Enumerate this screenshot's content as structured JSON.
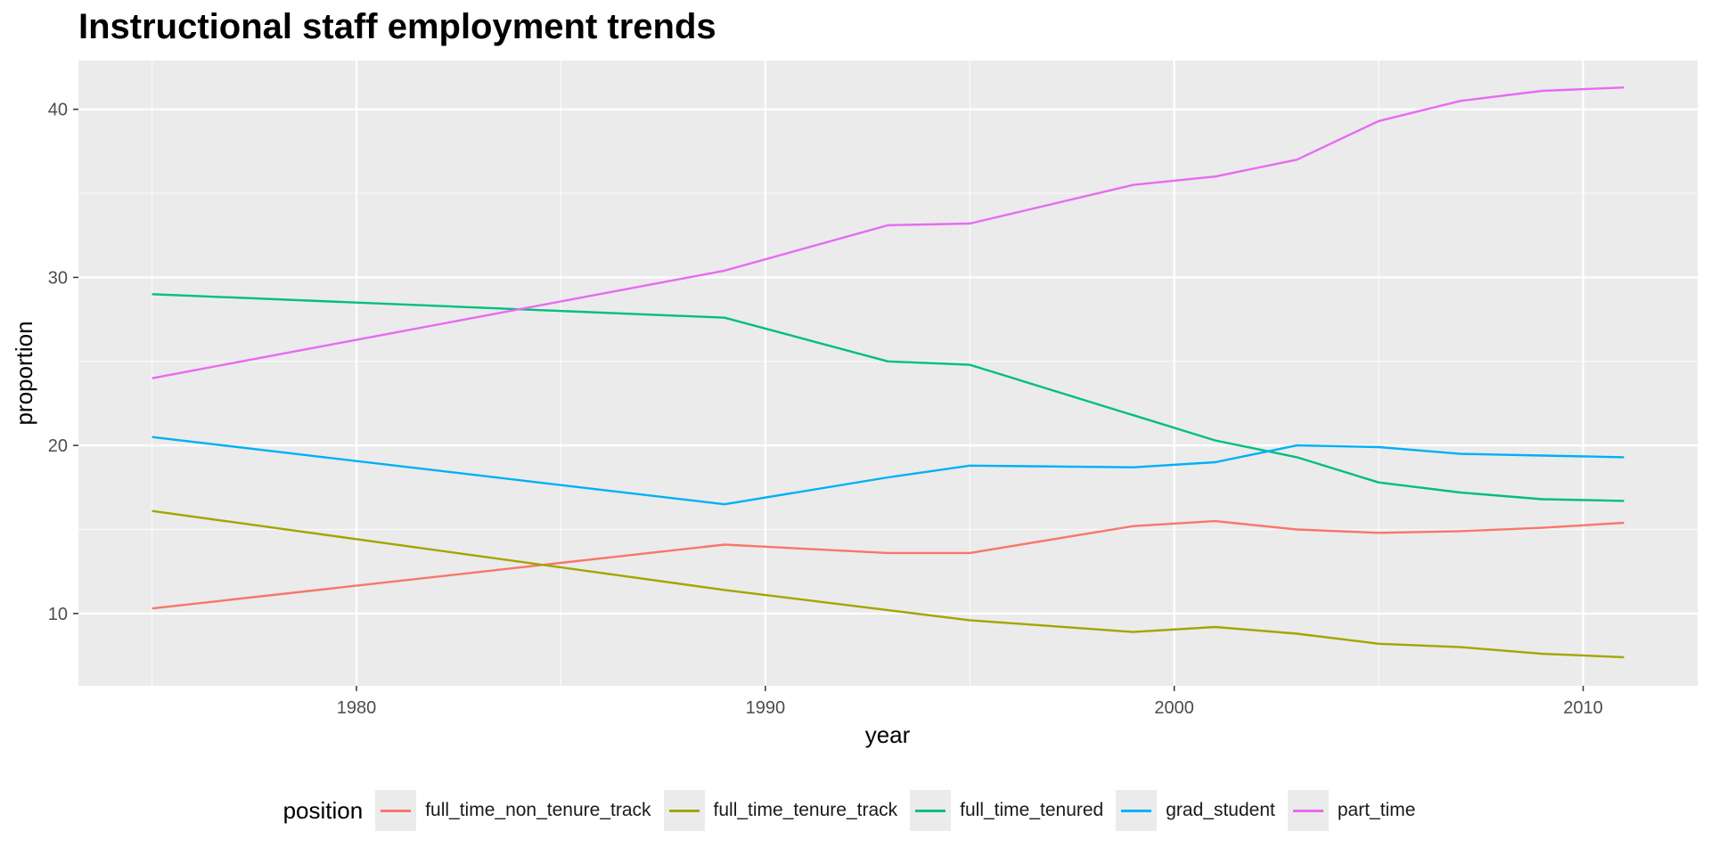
{
  "chart_data": {
    "type": "line",
    "title": "Instructional staff employment trends",
    "xlabel": "year",
    "ylabel": "proportion",
    "xlim": [
      1973.2,
      2012.8
    ],
    "ylim": [
      5.7,
      42.9
    ],
    "x_ticks": [
      1980,
      1990,
      2000,
      2010
    ],
    "y_ticks": [
      10,
      20,
      30,
      40
    ],
    "grid": true,
    "legend_position": "bottom",
    "legend_title": "position",
    "series": [
      {
        "name": "full_time_non_tenure_track",
        "color": "#F8766D",
        "x": [
          1975,
          1989,
          1993,
          1995,
          1999,
          2001,
          2003,
          2005,
          2007,
          2009,
          2011
        ],
        "y": [
          10.3,
          14.1,
          13.6,
          13.6,
          15.2,
          15.5,
          15.0,
          14.8,
          14.9,
          15.1,
          15.4
        ]
      },
      {
        "name": "full_time_tenure_track",
        "color": "#A3A500",
        "x": [
          1975,
          1989,
          1993,
          1995,
          1999,
          2001,
          2003,
          2005,
          2007,
          2009,
          2011
        ],
        "y": [
          16.1,
          11.4,
          10.2,
          9.6,
          8.9,
          9.2,
          8.8,
          8.2,
          8.0,
          7.6,
          7.4
        ]
      },
      {
        "name": "full_time_tenured",
        "color": "#00BF7D",
        "x": [
          1975,
          1989,
          1993,
          1995,
          1999,
          2001,
          2003,
          2005,
          2007,
          2009,
          2011
        ],
        "y": [
          29.0,
          27.6,
          25.0,
          24.8,
          21.8,
          20.3,
          19.3,
          17.8,
          17.2,
          16.8,
          16.7
        ]
      },
      {
        "name": "grad_student",
        "color": "#00B0F6",
        "x": [
          1975,
          1989,
          1993,
          1995,
          1999,
          2001,
          2003,
          2005,
          2007,
          2009,
          2011
        ],
        "y": [
          20.5,
          16.5,
          18.1,
          18.8,
          18.7,
          19.0,
          20.0,
          19.9,
          19.5,
          19.4,
          19.3
        ]
      },
      {
        "name": "part_time",
        "color": "#E76BF3",
        "x": [
          1975,
          1989,
          1993,
          1995,
          1999,
          2001,
          2003,
          2005,
          2007,
          2009,
          2011
        ],
        "y": [
          24.0,
          30.4,
          33.1,
          33.2,
          35.5,
          36.0,
          37.0,
          39.3,
          40.5,
          41.1,
          41.3
        ]
      }
    ]
  },
  "colors": {
    "panel_background": "#ebebeb",
    "grid_major": "#ffffff",
    "grid_minor": "#f6f6f6",
    "tick_text": "#4d4d4d"
  }
}
